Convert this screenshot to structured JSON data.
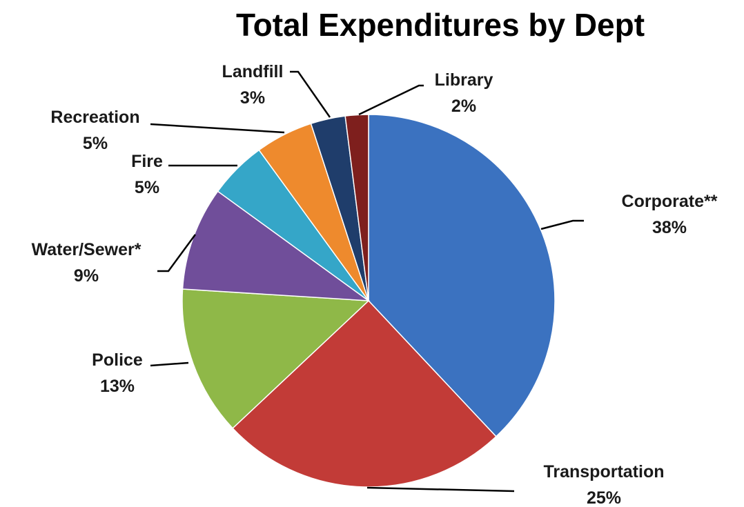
{
  "chart_data": {
    "type": "pie",
    "title": "Total Expenditures by Dept",
    "slices": [
      {
        "name": "Corporate**",
        "label": "Corporate**",
        "pct_label": "38%",
        "value": 38,
        "color": "#3b72c0"
      },
      {
        "name": "Transportation",
        "label": "Transportation",
        "pct_label": "25%",
        "value": 25,
        "color": "#c23b37"
      },
      {
        "name": "Police",
        "label": "Police",
        "pct_label": "13%",
        "value": 13,
        "color": "#8fb848"
      },
      {
        "name": "Water/Sewer*",
        "label": "Water/Sewer*",
        "pct_label": "9%",
        "value": 9,
        "color": "#704e9a"
      },
      {
        "name": "Fire",
        "label": "Fire",
        "pct_label": "5%",
        "value": 5,
        "color": "#35a6c8"
      },
      {
        "name": "Recreation",
        "label": "Recreation",
        "pct_label": "5%",
        "value": 5,
        "color": "#ee8a2d"
      },
      {
        "name": "Landfill",
        "label": "Landfill",
        "pct_label": "3%",
        "value": 3,
        "color": "#1f3d6b"
      },
      {
        "name": "Library",
        "label": "Library",
        "pct_label": "2%",
        "value": 2,
        "color": "#7e1f1d"
      }
    ]
  }
}
